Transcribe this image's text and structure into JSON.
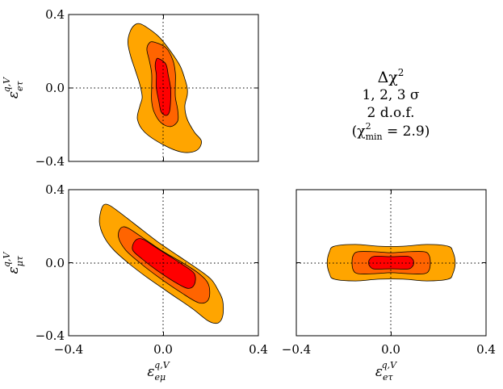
{
  "chart_data": [
    {
      "type": "contour",
      "panel": "top-left",
      "xlabel_base": "ε",
      "xlabel_sup": "q,V",
      "xlabel_sub": "eμ",
      "ylabel_base": "ε",
      "ylabel_sup": "q,V",
      "ylabel_sub": "eτ",
      "show_xlabel": false,
      "show_xticklabels": false,
      "xlim": [
        -0.4,
        0.4
      ],
      "ylim": [
        -0.4,
        0.4
      ],
      "xticks": [
        -0.4,
        0.0,
        0.4
      ],
      "yticks": [
        -0.4,
        0.0,
        0.4
      ],
      "tick_labels": [
        "−0.4",
        "0.0",
        "0.4"
      ],
      "best_fit": [
        0.0,
        0.0
      ],
      "levels": [
        {
          "label": "3σ",
          "color": "#FFA500",
          "points": [
            [
              -0.1,
              0.35
            ],
            [
              -0.07,
              0.33
            ],
            [
              -0.02,
              0.28
            ],
            [
              0.03,
              0.2
            ],
            [
              0.07,
              0.12
            ],
            [
              0.09,
              0.05
            ],
            [
              0.1,
              0.0
            ],
            [
              0.1,
              -0.04
            ],
            [
              0.09,
              -0.1
            ],
            [
              0.1,
              -0.17
            ],
            [
              0.13,
              -0.24
            ],
            [
              0.16,
              -0.29
            ],
            [
              0.14,
              -0.34
            ],
            [
              0.08,
              -0.35
            ],
            [
              0.0,
              -0.31
            ],
            [
              -0.08,
              -0.24
            ],
            [
              -0.11,
              -0.17
            ],
            [
              -0.1,
              -0.1
            ],
            [
              -0.09,
              -0.05
            ],
            [
              -0.1,
              0.02
            ],
            [
              -0.12,
              0.1
            ],
            [
              -0.14,
              0.18
            ],
            [
              -0.15,
              0.25
            ],
            [
              -0.14,
              0.31
            ],
            [
              -0.12,
              0.345
            ]
          ]
        },
        {
          "label": "2σ",
          "color": "#FF6400",
          "points": [
            [
              -0.04,
              0.25
            ],
            [
              0.01,
              0.22
            ],
            [
              0.04,
              0.15
            ],
            [
              0.05,
              0.08
            ],
            [
              0.05,
              0.02
            ],
            [
              0.05,
              -0.05
            ],
            [
              0.06,
              -0.12
            ],
            [
              0.06,
              -0.18
            ],
            [
              0.03,
              -0.21
            ],
            [
              -0.01,
              -0.19
            ],
            [
              -0.04,
              -0.13
            ],
            [
              -0.05,
              -0.07
            ],
            [
              -0.05,
              0.0
            ],
            [
              -0.05,
              0.08
            ],
            [
              -0.06,
              0.15
            ],
            [
              -0.07,
              0.21
            ],
            [
              -0.06,
              0.245
            ]
          ]
        },
        {
          "label": "1σ",
          "color": "#FF0000",
          "points": [
            [
              -0.02,
              0.16
            ],
            [
              0.01,
              0.13
            ],
            [
              0.02,
              0.07
            ],
            [
              0.03,
              0.0
            ],
            [
              0.03,
              -0.07
            ],
            [
              0.025,
              -0.13
            ],
            [
              0.01,
              -0.15
            ],
            [
              -0.01,
              -0.13
            ],
            [
              -0.02,
              -0.07
            ],
            [
              -0.03,
              0.0
            ],
            [
              -0.03,
              0.07
            ],
            [
              -0.035,
              0.12
            ],
            [
              -0.03,
              0.155
            ]
          ]
        }
      ]
    },
    {
      "type": "contour",
      "panel": "bottom-left",
      "xlabel_base": "ε",
      "xlabel_sup": "q,V",
      "xlabel_sub": "eμ",
      "ylabel_base": "ε",
      "ylabel_sup": "q,V",
      "ylabel_sub": "μτ",
      "show_xlabel": true,
      "show_xticklabels": true,
      "xlim": [
        -0.4,
        0.4
      ],
      "ylim": [
        -0.4,
        0.4
      ],
      "xticks": [
        -0.4,
        0.0,
        0.4
      ],
      "yticks": [
        -0.4,
        0.0,
        0.4
      ],
      "tick_labels": [
        "−0.4",
        "0.0",
        "0.4"
      ],
      "best_fit": [
        0.0,
        0.0
      ],
      "levels": [
        {
          "label": "3σ",
          "color": "#FFA500",
          "points": [
            [
              -0.26,
              0.3
            ],
            [
              -0.24,
              0.32
            ],
            [
              -0.2,
              0.29
            ],
            [
              -0.12,
              0.21
            ],
            [
              -0.03,
              0.12
            ],
            [
              0.06,
              0.04
            ],
            [
              0.14,
              -0.03
            ],
            [
              0.2,
              -0.09
            ],
            [
              0.23,
              -0.15
            ],
            [
              0.25,
              -0.21
            ],
            [
              0.25,
              -0.29
            ],
            [
              0.23,
              -0.33
            ],
            [
              0.19,
              -0.32
            ],
            [
              0.12,
              -0.25
            ],
            [
              0.03,
              -0.17
            ],
            [
              -0.07,
              -0.08
            ],
            [
              -0.15,
              0.0
            ],
            [
              -0.21,
              0.07
            ],
            [
              -0.25,
              0.14
            ],
            [
              -0.27,
              0.22
            ]
          ]
        },
        {
          "label": "2σ",
          "color": "#FF6400",
          "points": [
            [
              -0.18,
              0.19
            ],
            [
              -0.15,
              0.19
            ],
            [
              -0.08,
              0.13
            ],
            [
              0.0,
              0.06
            ],
            [
              0.08,
              0.0
            ],
            [
              0.15,
              -0.06
            ],
            [
              0.19,
              -0.12
            ],
            [
              0.19,
              -0.2
            ],
            [
              0.15,
              -0.22
            ],
            [
              0.07,
              -0.16
            ],
            [
              -0.02,
              -0.08
            ],
            [
              -0.1,
              0.0
            ],
            [
              -0.16,
              0.07
            ],
            [
              -0.19,
              0.14
            ]
          ]
        },
        {
          "label": "1σ",
          "color": "#FF0000",
          "points": [
            [
              -0.12,
              0.12
            ],
            [
              -0.09,
              0.13
            ],
            [
              -0.04,
              0.09
            ],
            [
              0.02,
              0.04
            ],
            [
              0.08,
              -0.01
            ],
            [
              0.13,
              -0.06
            ],
            [
              0.13,
              -0.12
            ],
            [
              0.1,
              -0.14
            ],
            [
              0.04,
              -0.1
            ],
            [
              -0.03,
              -0.04
            ],
            [
              -0.09,
              0.02
            ],
            [
              -0.13,
              0.07
            ]
          ]
        }
      ]
    },
    {
      "type": "contour",
      "panel": "bottom-right",
      "xlabel_base": "ε",
      "xlabel_sup": "q,V",
      "xlabel_sub": "eτ",
      "ylabel_base": "ε",
      "ylabel_sup": "q,V",
      "ylabel_sub": "μτ",
      "show_ylabel": false,
      "show_xlabel": true,
      "show_xticklabels": true,
      "show_yticklabels": false,
      "xlim": [
        -0.4,
        0.4
      ],
      "ylim": [
        -0.4,
        0.4
      ],
      "xticks": [
        -0.4,
        0.0,
        0.4
      ],
      "yticks": [
        -0.4,
        0.0,
        0.4
      ],
      "tick_labels": [
        "−0.4",
        "0.0",
        "0.4"
      ],
      "best_fit": [
        0.0,
        0.0
      ],
      "levels": [
        {
          "label": "3σ",
          "color": "#FFA500",
          "points": [
            [
              -0.26,
              0.06
            ],
            [
              -0.24,
              0.09
            ],
            [
              -0.15,
              0.1
            ],
            [
              -0.05,
              0.09
            ],
            [
              0.05,
              0.09
            ],
            [
              0.15,
              0.1
            ],
            [
              0.24,
              0.09
            ],
            [
              0.26,
              0.06
            ],
            [
              0.27,
              0.0
            ],
            [
              0.26,
              -0.06
            ],
            [
              0.24,
              -0.09
            ],
            [
              0.15,
              -0.1
            ],
            [
              0.05,
              -0.09
            ],
            [
              -0.05,
              -0.09
            ],
            [
              -0.15,
              -0.1
            ],
            [
              -0.24,
              -0.09
            ],
            [
              -0.26,
              -0.06
            ],
            [
              -0.27,
              0.0
            ]
          ]
        },
        {
          "label": "2σ",
          "color": "#FF6400",
          "points": [
            [
              -0.16,
              0.04
            ],
            [
              -0.14,
              0.06
            ],
            [
              -0.07,
              0.06
            ],
            [
              0.0,
              0.055
            ],
            [
              0.07,
              0.06
            ],
            [
              0.14,
              0.06
            ],
            [
              0.16,
              0.04
            ],
            [
              0.165,
              0.0
            ],
            [
              0.16,
              -0.04
            ],
            [
              0.14,
              -0.06
            ],
            [
              0.07,
              -0.06
            ],
            [
              0.0,
              -0.055
            ],
            [
              -0.07,
              -0.06
            ],
            [
              -0.14,
              -0.06
            ],
            [
              -0.16,
              -0.04
            ],
            [
              -0.165,
              0.0
            ]
          ]
        },
        {
          "label": "1σ",
          "color": "#FF0000",
          "points": [
            [
              -0.09,
              0.02
            ],
            [
              -0.07,
              0.035
            ],
            [
              0.0,
              0.033
            ],
            [
              0.07,
              0.035
            ],
            [
              0.09,
              0.02
            ],
            [
              0.095,
              0.0
            ],
            [
              0.09,
              -0.02
            ],
            [
              0.07,
              -0.035
            ],
            [
              0.0,
              -0.033
            ],
            [
              -0.07,
              -0.035
            ],
            [
              -0.09,
              -0.02
            ],
            [
              -0.095,
              0.0
            ]
          ]
        }
      ]
    }
  ],
  "legend": {
    "title_base": "Δχ",
    "title_sup": "2",
    "levels_line": "1, 2, 3 σ",
    "dof_line": "2 d.o.f.",
    "chi_open": "(χ",
    "chi_sup": "2",
    "chi_sub": "min",
    "chi_value": " = 2.9)"
  }
}
